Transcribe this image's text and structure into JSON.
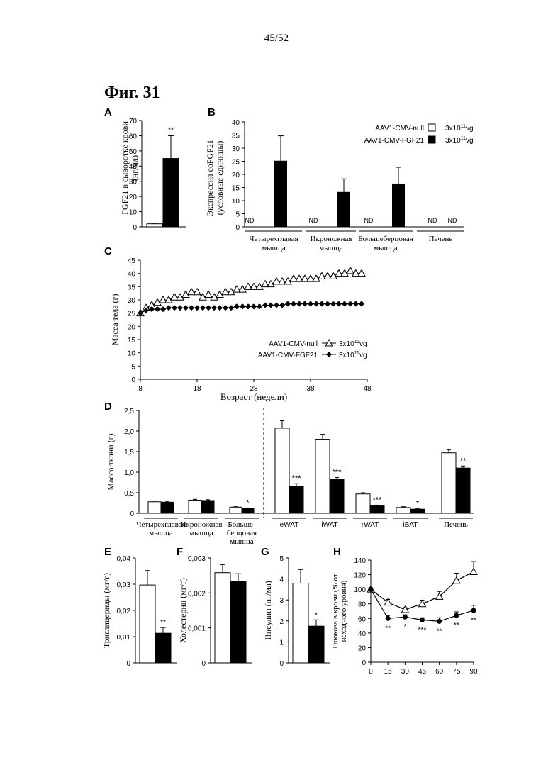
{
  "page": {
    "number": "45/52",
    "figure_title": "Фиг. 31"
  },
  "chart_data": [
    {
      "panel": "A",
      "type": "bar",
      "ylabel": "FGF21 в сыворотке крови (нг/мл)",
      "ylim": [
        0,
        70
      ],
      "yticks": [
        0,
        10,
        20,
        30,
        40,
        50,
        60,
        70
      ],
      "series": [
        {
          "name": "AAV1-CMV-null",
          "fill": "#ffffff",
          "value": 2,
          "err": 0.5,
          "sig": ""
        },
        {
          "name": "AAV1-CMV-FGF21",
          "fill": "#000000",
          "value": 45,
          "err": 15,
          "sig": "**"
        }
      ]
    },
    {
      "panel": "B",
      "type": "bar",
      "ylabel": "Экспрессия coFGF21 (условные единицы)",
      "ylim": [
        0,
        40
      ],
      "yticks": [
        0,
        5,
        10,
        15,
        20,
        25,
        30,
        35,
        40
      ],
      "categories": [
        "Четырехглавая мышца",
        "Икроножная мышца",
        "Большеберцовая мышца",
        "Печень"
      ],
      "nd_label": "ND",
      "legend": [
        {
          "name": "AAV1-CMV-null",
          "dose": "3x10",
          "exp": "11",
          "unit": "vg",
          "fill": "#ffffff"
        },
        {
          "name": "AAV1-CMV-FGF21",
          "dose": "3x10",
          "exp": "11",
          "unit": "vg",
          "fill": "#000000"
        }
      ],
      "series": [
        {
          "name": "AAV1-CMV-null",
          "values": [
            null,
            null,
            null,
            null
          ],
          "err": [
            0,
            0,
            0,
            0
          ]
        },
        {
          "name": "AAV1-CMV-FGF21",
          "values": [
            25.2,
            13.3,
            16.5,
            null
          ],
          "err": [
            9.5,
            5.0,
            6.2,
            0
          ]
        }
      ]
    },
    {
      "panel": "C",
      "type": "line",
      "xlabel": "Возраст (недели)",
      "ylabel": "Масса тела (г)",
      "xlim": [
        8,
        48
      ],
      "xticks": [
        8,
        18,
        28,
        38,
        48
      ],
      "ylim": [
        0,
        45
      ],
      "yticks": [
        0,
        5,
        10,
        15,
        20,
        25,
        30,
        35,
        40,
        45
      ],
      "x": [
        8,
        9,
        10,
        11,
        12,
        13,
        14,
        15,
        16,
        17,
        18,
        19,
        20,
        21,
        22,
        23,
        24,
        25,
        26,
        27,
        28,
        29,
        30,
        31,
        32,
        33,
        34,
        35,
        36,
        37,
        38,
        39,
        40,
        41,
        42,
        43,
        44,
        45,
        46,
        47
      ],
      "legend": [
        {
          "name": "AAV1-CMV-null",
          "dose": "3x10",
          "exp": "11",
          "unit": "vg",
          "marker": "triangle-open"
        },
        {
          "name": "AAV1-CMV-FGF21",
          "dose": "3x10",
          "exp": "11",
          "unit": "vg",
          "marker": "diamond-filled"
        }
      ],
      "series": [
        {
          "name": "AAV1-CMV-null",
          "err": 1.0,
          "values": [
            25,
            27,
            28,
            29,
            30,
            30,
            31,
            31,
            32,
            33,
            33,
            31,
            32,
            31,
            32,
            33,
            33,
            34,
            34,
            35,
            35,
            35,
            36,
            36,
            37,
            37,
            37,
            38,
            38,
            38,
            38,
            38,
            39,
            39,
            39,
            40,
            40,
            41,
            40,
            40
          ]
        },
        {
          "name": "AAV1-CMV-FGF21",
          "err": 0.7,
          "values": [
            25,
            26,
            26.5,
            26.5,
            26.5,
            27,
            27,
            27,
            27,
            27,
            27,
            27,
            27,
            27,
            27,
            27,
            27,
            27.5,
            27.5,
            27.5,
            27.5,
            27.5,
            28,
            28,
            28,
            28,
            28.5,
            28.5,
            28.5,
            28.5,
            28.5,
            28.5,
            28.5,
            28.5,
            28.5,
            28.5,
            28.5,
            28.5,
            28.5,
            28.5
          ]
        }
      ]
    },
    {
      "panel": "D",
      "type": "bar",
      "ylabel": "Масса ткани (г)",
      "ylim": [
        0,
        2.5
      ],
      "yticks": [
        "0",
        "0,5",
        "1,0",
        "1,5",
        "2,0",
        "2,5"
      ],
      "categories": [
        "Четырехглавая мышца",
        "Икроножная мышца",
        "Больше-берцовая мышца",
        "eWAT",
        "iWAT",
        "rWAT",
        "iBAT",
        "Печень"
      ],
      "category_lines": [
        [
          "Четырехглавая",
          "мышца"
        ],
        [
          "Икроножная",
          "мышца"
        ],
        [
          "Больше-",
          "берцовая",
          "мышца"
        ],
        [
          "eWAT"
        ],
        [
          "iWAT"
        ],
        [
          "rWAT"
        ],
        [
          "iBAT"
        ],
        [
          "Печень"
        ]
      ],
      "series": [
        {
          "name": "AAV1-CMV-null",
          "values": [
            0.28,
            0.32,
            0.15,
            2.07,
            1.8,
            0.47,
            0.14,
            1.47
          ],
          "err": [
            0.02,
            0.02,
            0.01,
            0.18,
            0.12,
            0.03,
            0.02,
            0.07
          ]
        },
        {
          "name": "AAV1-CMV-FGF21",
          "values": [
            0.27,
            0.31,
            0.12,
            0.66,
            0.83,
            0.18,
            0.1,
            1.1
          ],
          "err": [
            0.02,
            0.02,
            0.01,
            0.06,
            0.04,
            0.02,
            0.01,
            0.05
          ]
        }
      ],
      "significance": [
        "",
        "",
        "*",
        "***",
        "***",
        "***",
        "*",
        "**"
      ]
    },
    {
      "panel": "E",
      "type": "bar",
      "ylabel": "Триглицериды (мг/г)",
      "ylim": [
        0,
        0.04
      ],
      "yticks": [
        "0",
        "0,01",
        "0,02",
        "0,03",
        "0,04"
      ],
      "values": [
        0.0297,
        0.0113
      ],
      "err": [
        0.0055,
        0.0022
      ],
      "sig": [
        "",
        "**"
      ]
    },
    {
      "panel": "F",
      "type": "bar",
      "ylabel": "Холестерин (мг/г)",
      "ylim": [
        0,
        0.003
      ],
      "yticks": [
        "0",
        "0,001",
        "0,002",
        "0,003"
      ],
      "values": [
        0.00258,
        0.00233
      ],
      "err": [
        0.00023,
        0.00022
      ],
      "sig": [
        "",
        ""
      ]
    },
    {
      "panel": "G",
      "type": "bar",
      "ylabel": "Инсулин (нг/мл)",
      "ylim": [
        0,
        5
      ],
      "yticks": [
        "0",
        "1",
        "2",
        "3",
        "4",
        "5"
      ],
      "values": [
        3.8,
        1.75
      ],
      "err": [
        0.65,
        0.3
      ],
      "sig": [
        "",
        "*"
      ]
    },
    {
      "panel": "H",
      "type": "line",
      "ylabel": "Глюкоза в крови (% от исходного уровня)",
      "xlim": [
        0,
        90
      ],
      "xticks": [
        0,
        15,
        30,
        45,
        60,
        75,
        90
      ],
      "ylim": [
        0,
        140
      ],
      "yticks": [
        0,
        20,
        40,
        60,
        80,
        100,
        120,
        140
      ],
      "x": [
        0,
        15,
        30,
        45,
        60,
        75,
        90
      ],
      "series": [
        {
          "name": "AAV1-CMV-null",
          "marker": "triangle-open",
          "values": [
            100,
            82,
            72,
            80,
            90,
            112,
            124
          ],
          "err": [
            2,
            4,
            3,
            5,
            7,
            10,
            14
          ]
        },
        {
          "name": "AAV1-CMV-FGF21",
          "marker": "circle-filled",
          "values": [
            100,
            60,
            62,
            58,
            56,
            64,
            71
          ],
          "err": [
            2,
            4,
            3,
            3,
            5,
            5,
            7
          ]
        }
      ],
      "significance": [
        "",
        "**",
        "*",
        "***",
        "**",
        "**",
        "**"
      ]
    }
  ]
}
